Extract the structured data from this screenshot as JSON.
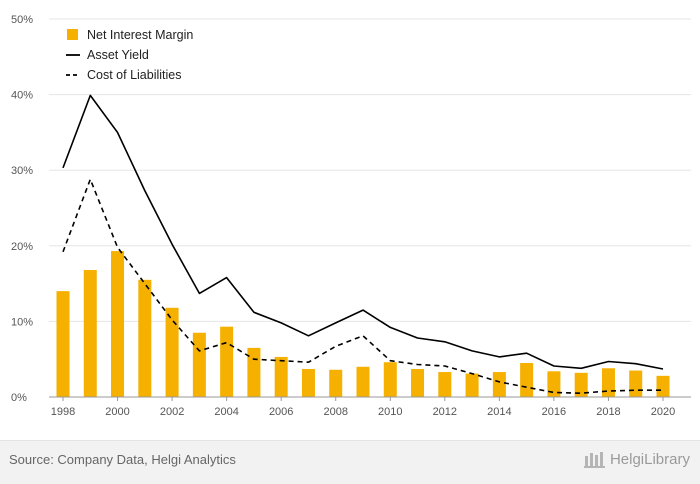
{
  "chart_data": {
    "type": "bar+line",
    "x": [
      "1998",
      "1999",
      "2000",
      "2001",
      "2002",
      "2003",
      "2004",
      "2005",
      "2006",
      "2007",
      "2008",
      "2009",
      "2010",
      "2011",
      "2012",
      "2013",
      "2014",
      "2015",
      "2016",
      "2017",
      "2018",
      "2019",
      "2020"
    ],
    "series": [
      {
        "name": "Net Interest Margin",
        "kind": "bar",
        "color": "#f5b000",
        "values": [
          14.0,
          16.8,
          19.3,
          15.5,
          11.8,
          8.5,
          9.3,
          6.5,
          5.3,
          3.7,
          3.6,
          4.0,
          4.6,
          3.7,
          3.3,
          3.1,
          3.3,
          4.5,
          3.4,
          3.2,
          3.8,
          3.5,
          2.8
        ]
      },
      {
        "name": "Asset Yield",
        "kind": "line",
        "style": "solid",
        "color": "#000000",
        "values": [
          30.3,
          39.9,
          35.0,
          27.3,
          20.2,
          13.7,
          15.8,
          11.2,
          9.8,
          8.1,
          9.8,
          11.5,
          9.2,
          7.8,
          7.3,
          6.1,
          5.3,
          5.8,
          4.1,
          3.8,
          4.7,
          4.4,
          3.7
        ]
      },
      {
        "name": "Cost of Liabilities",
        "kind": "line",
        "style": "dashed",
        "color": "#000000",
        "values": [
          19.2,
          28.8,
          19.8,
          15.0,
          10.2,
          6.1,
          7.2,
          5.0,
          4.8,
          4.6,
          6.7,
          8.1,
          4.8,
          4.3,
          4.1,
          3.1,
          2.0,
          1.3,
          0.6,
          0.5,
          0.8,
          0.9,
          0.9
        ]
      }
    ],
    "xticks": [
      "1998",
      "2000",
      "2002",
      "2004",
      "2006",
      "2008",
      "2010",
      "2012",
      "2014",
      "2016",
      "2018",
      "2020"
    ],
    "yticks": [
      "0%",
      "10%",
      "20%",
      "30%",
      "40%",
      "50%"
    ],
    "ylim": [
      0,
      50
    ],
    "legend_position": "top-left",
    "grid": true
  },
  "footer": {
    "source": "Source: Company Data, Helgi Analytics",
    "brand": "HelgiLibrary"
  }
}
